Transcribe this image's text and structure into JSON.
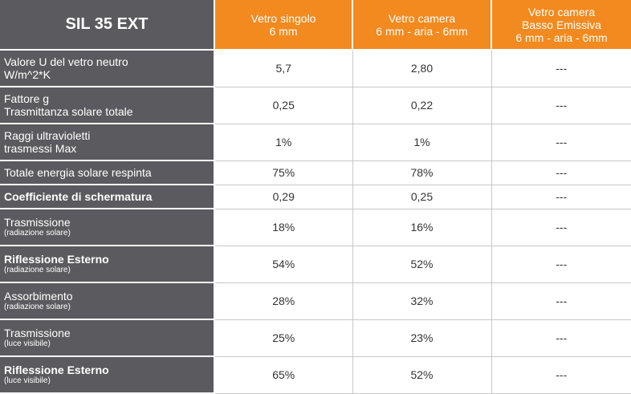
{
  "table": {
    "corner_title": "SIL 35 EXT",
    "columns": [
      {
        "line1": "Vetro singolo",
        "line2": "6 mm",
        "line3": ""
      },
      {
        "line1": "Vetro camera",
        "line2": "6 mm - aria - 6mm",
        "line3": ""
      },
      {
        "line1": "Vetro camera",
        "line2": "Basso Emissiva",
        "line3": "6 mm - aria - 6mm"
      }
    ],
    "rows": [
      {
        "label": "Valore U del vetro neutro",
        "label2": "W/m^2*K",
        "sub": "",
        "bold": false,
        "values": [
          "5,7",
          "2,80",
          "---"
        ]
      },
      {
        "label": "Fattore g",
        "label2": "Trasmittanza solare totale",
        "sub": "",
        "bold": false,
        "values": [
          "0,25",
          "0,22",
          "---"
        ]
      },
      {
        "label": "Raggi ultravioletti",
        "label2": "trasmessi Max",
        "sub": "",
        "bold": false,
        "values": [
          "1%",
          "1%",
          "---"
        ]
      },
      {
        "label": "Totale energia solare respinta",
        "label2": "",
        "sub": "",
        "bold": false,
        "values": [
          "75%",
          "78%",
          "---"
        ]
      },
      {
        "label": "Coefficiente di schermatura",
        "label2": "",
        "sub": "",
        "bold": true,
        "values": [
          "0,29",
          "0,25",
          "---"
        ]
      },
      {
        "label": "Trasmissione",
        "label2": "",
        "sub": "(radiazione solare)",
        "bold": false,
        "values": [
          "18%",
          "16%",
          "---"
        ]
      },
      {
        "label": "Riflessione Esterno",
        "label2": "",
        "sub": "(radiazione solare)",
        "bold": true,
        "values": [
          "54%",
          "52%",
          "---"
        ]
      },
      {
        "label": "Assorbimento",
        "label2": "",
        "sub": "(radiazione solare)",
        "bold": false,
        "values": [
          "28%",
          "32%",
          "---"
        ]
      },
      {
        "label": "Trasmissione",
        "label2": "",
        "sub": "(luce visibile)",
        "bold": false,
        "values": [
          "25%",
          "23%",
          "---"
        ]
      },
      {
        "label": "Riflessione Esterno",
        "label2": "",
        "sub": "(luce visibile)",
        "bold": true,
        "values": [
          "65%",
          "52%",
          "---"
        ]
      }
    ]
  },
  "colors": {
    "label_bg": "#5b5b5f",
    "header_orange": "#f28a1f",
    "text_on_dark": "#ffffff",
    "value_text": "#333333"
  }
}
